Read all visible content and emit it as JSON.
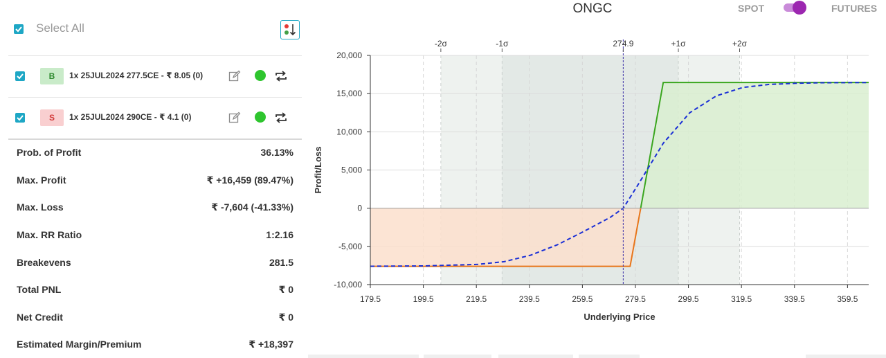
{
  "controls": {
    "select_all_label": "Select All",
    "sort_icon": "sort-icon"
  },
  "legs": [
    {
      "checked": true,
      "side": "B",
      "text": "1x 25JUL2024 277.5CE - ₹ 8.05  (0)"
    },
    {
      "checked": true,
      "side": "S",
      "text": "1x 25JUL2024 290CE - ₹ 4.1  (0)"
    }
  ],
  "metrics": [
    {
      "label": "Prob. of Profit",
      "value": "36.13%"
    },
    {
      "label": "Max. Profit",
      "value": "₹ +16,459 (89.47%)"
    },
    {
      "label": "Max. Loss",
      "value": "₹ -7,604 (-41.33%)"
    },
    {
      "label": "Max. RR Ratio",
      "value": "1:2.16"
    },
    {
      "label": "Breakevens",
      "value": "281.5"
    },
    {
      "label": "Total PNL",
      "value": "₹ 0"
    },
    {
      "label": "Net Credit",
      "value": "₹ 0"
    },
    {
      "label": "Estimated Margin/Premium",
      "value": "₹ +18,397"
    }
  ],
  "header": {
    "symbol": "ONGC",
    "spot_label": "SPOT",
    "futures_label": "FUTURES",
    "toggle_state": "futures"
  },
  "colors": {
    "accent": "#1ea7c5",
    "profit_line": "#3aa61e",
    "loss_line": "#e8751a",
    "profit_fill": "#d9efd0",
    "loss_fill": "#fbdfcd",
    "projected_line": "#1a2fd6",
    "toggle": "#9c27b0",
    "status_dot": "#2ec52e"
  },
  "chart_data": {
    "type": "line",
    "xlabel": "Underlying Price",
    "ylabel": "Profit/Loss",
    "xlim": [
      179.5,
      367.5
    ],
    "ylim": [
      -10000,
      20000
    ],
    "x_ticks": [
      179.5,
      199.5,
      219.5,
      239.5,
      259.5,
      279.5,
      299.5,
      319.5,
      339.5,
      359.5
    ],
    "y_ticks": [
      -10000,
      -5000,
      0,
      5000,
      10000,
      15000,
      20000
    ],
    "y_tick_labels": [
      "-10,000",
      "-5,000",
      "0",
      "5,000",
      "10,000",
      "15,000",
      "20,000"
    ],
    "grid": true,
    "spot_price": 274.9,
    "spot_label": "274.9",
    "sigma_bands": [
      {
        "label": "-2σ",
        "x": 206.1
      },
      {
        "label": "-1σ",
        "x": 229.2
      },
      {
        "label": "+1σ",
        "x": 295.7
      },
      {
        "label": "+2σ",
        "x": 318.8
      }
    ],
    "series": [
      {
        "style": "solid",
        "x": [
          179.5,
          277.5,
          281.5,
          290,
          367.5
        ],
        "y": [
          -7604,
          -7604,
          0,
          16459,
          16459
        ]
      },
      {
        "style": "dashed",
        "x": [
          179.5,
          200,
          220,
          230,
          240,
          250,
          260,
          270,
          274.9,
          280,
          290,
          300,
          310,
          320,
          330,
          340,
          350,
          367.5
        ],
        "y": [
          -7600,
          -7550,
          -7350,
          -7000,
          -6150,
          -4800,
          -3050,
          -1200,
          0,
          2800,
          8500,
          12500,
          14700,
          15800,
          16200,
          16350,
          16420,
          16450
        ]
      }
    ]
  }
}
